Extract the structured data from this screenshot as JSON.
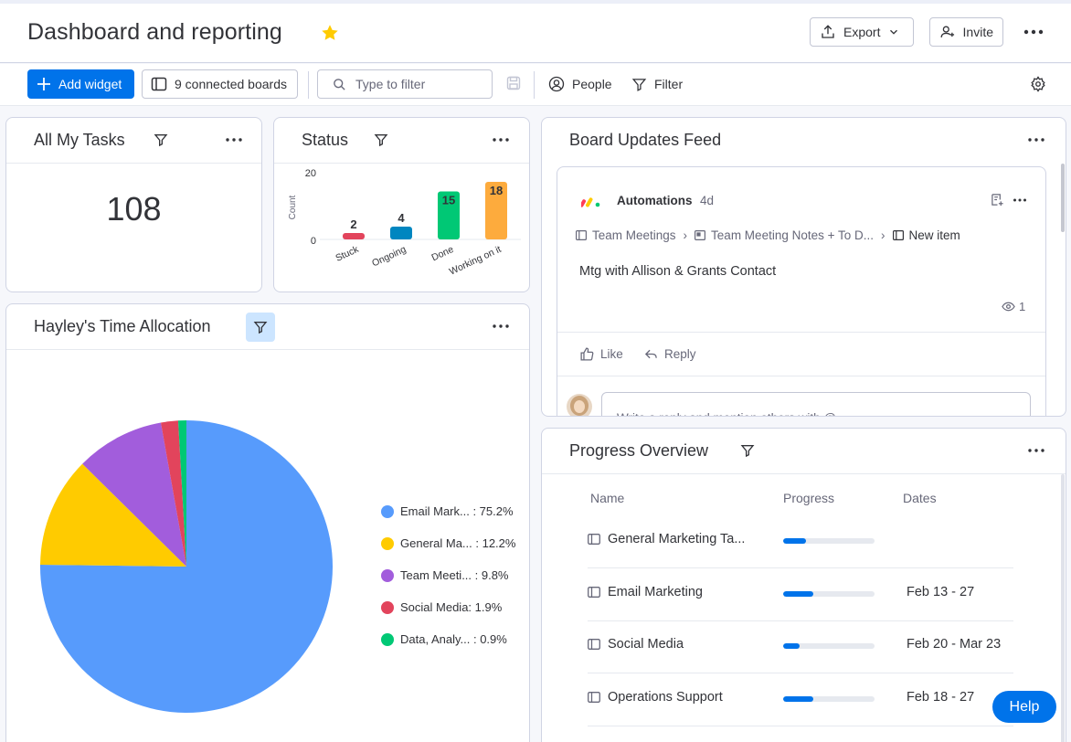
{
  "header": {
    "title": "Dashboard and reporting",
    "export_label": "Export",
    "invite_label": "Invite"
  },
  "toolbar": {
    "add_widget_label": "Add widget",
    "connected_boards_label": "9 connected boards",
    "filter_placeholder": "Type to filter",
    "people_label": "People",
    "filter_label": "Filter"
  },
  "widgets": {
    "all_my_tasks": {
      "title": "All My Tasks",
      "count": "108"
    },
    "status": {
      "title": "Status",
      "y_axis_label": "Count",
      "y_ticks": [
        "20",
        "0"
      ],
      "categories": [
        "Stuck",
        "Ongoing",
        "Done",
        "Working on it"
      ],
      "values": [
        2,
        4,
        15,
        18
      ],
      "value_labels": [
        "2",
        "4",
        "15",
        "18"
      ],
      "colors": [
        "#e2445c",
        "#0086c0",
        "#00c875",
        "#fdab3d"
      ]
    },
    "time_allocation": {
      "title": "Hayley's Time Allocation",
      "legend": [
        {
          "label": "Email Mark... : 75.2%",
          "value": 75.2,
          "color": "#579bfc"
        },
        {
          "label": "General Ma... : 12.2%",
          "value": 12.2,
          "color": "#ffcb00"
        },
        {
          "label": "Team Meeti... : 9.8%",
          "value": 9.8,
          "color": "#a25ddc"
        },
        {
          "label": "Social Media: 1.9%",
          "value": 1.9,
          "color": "#e2445c"
        },
        {
          "label": "Data, Analy... : 0.9%",
          "value": 0.9,
          "color": "#00c875"
        }
      ]
    },
    "board_updates": {
      "title": "Board Updates Feed",
      "author": "Automations",
      "time_ago": "4d",
      "breadcrumb": [
        "Team Meetings",
        "Team Meeting Notes + To D...",
        "New item"
      ],
      "body": "Mtg with Allison & Grants Contact",
      "views": "1",
      "like_label": "Like",
      "reply_label": "Reply",
      "reply_placeholder": "Write a reply and mention others with @"
    },
    "progress_overview": {
      "title": "Progress Overview",
      "columns": [
        "Name",
        "Progress",
        "Dates"
      ],
      "rows": [
        {
          "name": "General Marketing Ta...",
          "progress": 25,
          "dates": ""
        },
        {
          "name": "Email Marketing",
          "progress": 33,
          "dates": "Feb 13 - 27"
        },
        {
          "name": "Social Media",
          "progress": 18,
          "dates": "Feb 20 - Mar 23"
        },
        {
          "name": "Operations Support",
          "progress": 33,
          "dates": "Feb 18 - 27"
        }
      ]
    }
  },
  "help_label": "Help"
}
